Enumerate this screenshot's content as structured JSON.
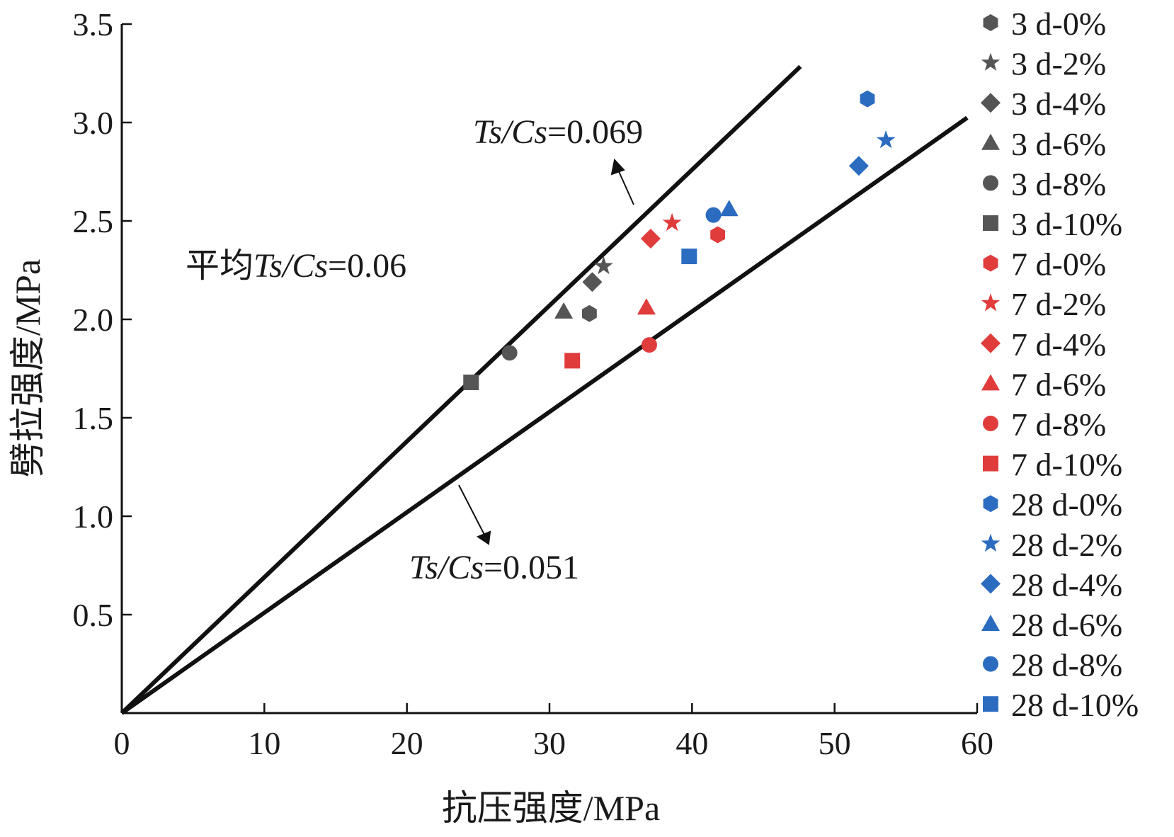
{
  "chart_data": {
    "type": "scatter",
    "title": "",
    "xlabel": "抗压强度/MPa",
    "ylabel": "劈拉强度/MPa",
    "xlim": [
      0,
      60
    ],
    "ylim": [
      0,
      3.5
    ],
    "x_ticks": [
      0,
      10,
      20,
      30,
      40,
      50,
      60
    ],
    "x_tick_labels": [
      "0",
      "10",
      "20",
      "30",
      "40",
      "50",
      "60"
    ],
    "y_ticks": [
      0.5,
      1.0,
      1.5,
      2.0,
      2.5,
      3.0,
      3.5
    ],
    "y_tick_labels": [
      "0.5",
      "1.0",
      "1.5",
      "2.0",
      "2.5",
      "3.0",
      "3.5"
    ],
    "grid": false,
    "legend_position": "right",
    "colors": {
      "3d": "#555555",
      "7d": "#e03c3c",
      "28d": "#2b6cc0",
      "line": "#111111"
    },
    "series": [
      {
        "name": "3 d-0%",
        "marker": "hexagon",
        "color": "#555555",
        "x": [
          32.8
        ],
        "y": [
          2.03
        ]
      },
      {
        "name": "3 d-2%",
        "marker": "star",
        "color": "#555555",
        "x": [
          33.8
        ],
        "y": [
          2.27
        ]
      },
      {
        "name": "3 d-4%",
        "marker": "diamond",
        "color": "#555555",
        "x": [
          33.0
        ],
        "y": [
          2.19
        ]
      },
      {
        "name": "3 d-6%",
        "marker": "triangle",
        "color": "#555555",
        "x": [
          31.0
        ],
        "y": [
          2.04
        ]
      },
      {
        "name": "3 d-8%",
        "marker": "circle",
        "color": "#555555",
        "x": [
          27.2
        ],
        "y": [
          1.83
        ]
      },
      {
        "name": "3 d-10%",
        "marker": "square",
        "color": "#555555",
        "x": [
          24.5
        ],
        "y": [
          1.68
        ]
      },
      {
        "name": "7 d-0%",
        "marker": "hexagon",
        "color": "#e03c3c",
        "x": [
          41.8
        ],
        "y": [
          2.43
        ]
      },
      {
        "name": "7 d-2%",
        "marker": "star",
        "color": "#e03c3c",
        "x": [
          38.6
        ],
        "y": [
          2.49
        ]
      },
      {
        "name": "7 d-4%",
        "marker": "diamond",
        "color": "#e03c3c",
        "x": [
          37.1
        ],
        "y": [
          2.41
        ]
      },
      {
        "name": "7 d-6%",
        "marker": "triangle",
        "color": "#e03c3c",
        "x": [
          36.8
        ],
        "y": [
          2.06
        ]
      },
      {
        "name": "7 d-8%",
        "marker": "circle",
        "color": "#e03c3c",
        "x": [
          37.0
        ],
        "y": [
          1.87
        ]
      },
      {
        "name": "7 d-10%",
        "marker": "square",
        "color": "#e03c3c",
        "x": [
          31.6
        ],
        "y": [
          1.79
        ]
      },
      {
        "name": "28 d-0%",
        "marker": "hexagon",
        "color": "#2b6cc0",
        "x": [
          52.3
        ],
        "y": [
          3.12
        ]
      },
      {
        "name": "28 d-2%",
        "marker": "star",
        "color": "#2b6cc0",
        "x": [
          53.6
        ],
        "y": [
          2.91
        ]
      },
      {
        "name": "28 d-4%",
        "marker": "diamond",
        "color": "#2b6cc0",
        "x": [
          51.7
        ],
        "y": [
          2.78
        ]
      },
      {
        "name": "28 d-6%",
        "marker": "triangle",
        "color": "#2b6cc0",
        "x": [
          42.6
        ],
        "y": [
          2.56
        ]
      },
      {
        "name": "28 d-8%",
        "marker": "circle",
        "color": "#2b6cc0",
        "x": [
          41.5
        ],
        "y": [
          2.53
        ]
      },
      {
        "name": "28 d-10%",
        "marker": "square",
        "color": "#2b6cc0",
        "x": [
          39.8
        ],
        "y": [
          2.32
        ]
      }
    ],
    "reference_lines": [
      {
        "slope": 0.069,
        "x_range": [
          0,
          47.6
        ]
      },
      {
        "slope": 0.051,
        "x_range": [
          0,
          59.3
        ]
      }
    ],
    "annotations": {
      "upper": {
        "italic": "Ts/Cs",
        "rest": "=0.069"
      },
      "lower": {
        "italic": "Ts/Cs",
        "rest": "=0.051"
      },
      "average": {
        "prefix": "平均",
        "italic": "Ts/Cs",
        "rest": "=0.06"
      }
    }
  }
}
